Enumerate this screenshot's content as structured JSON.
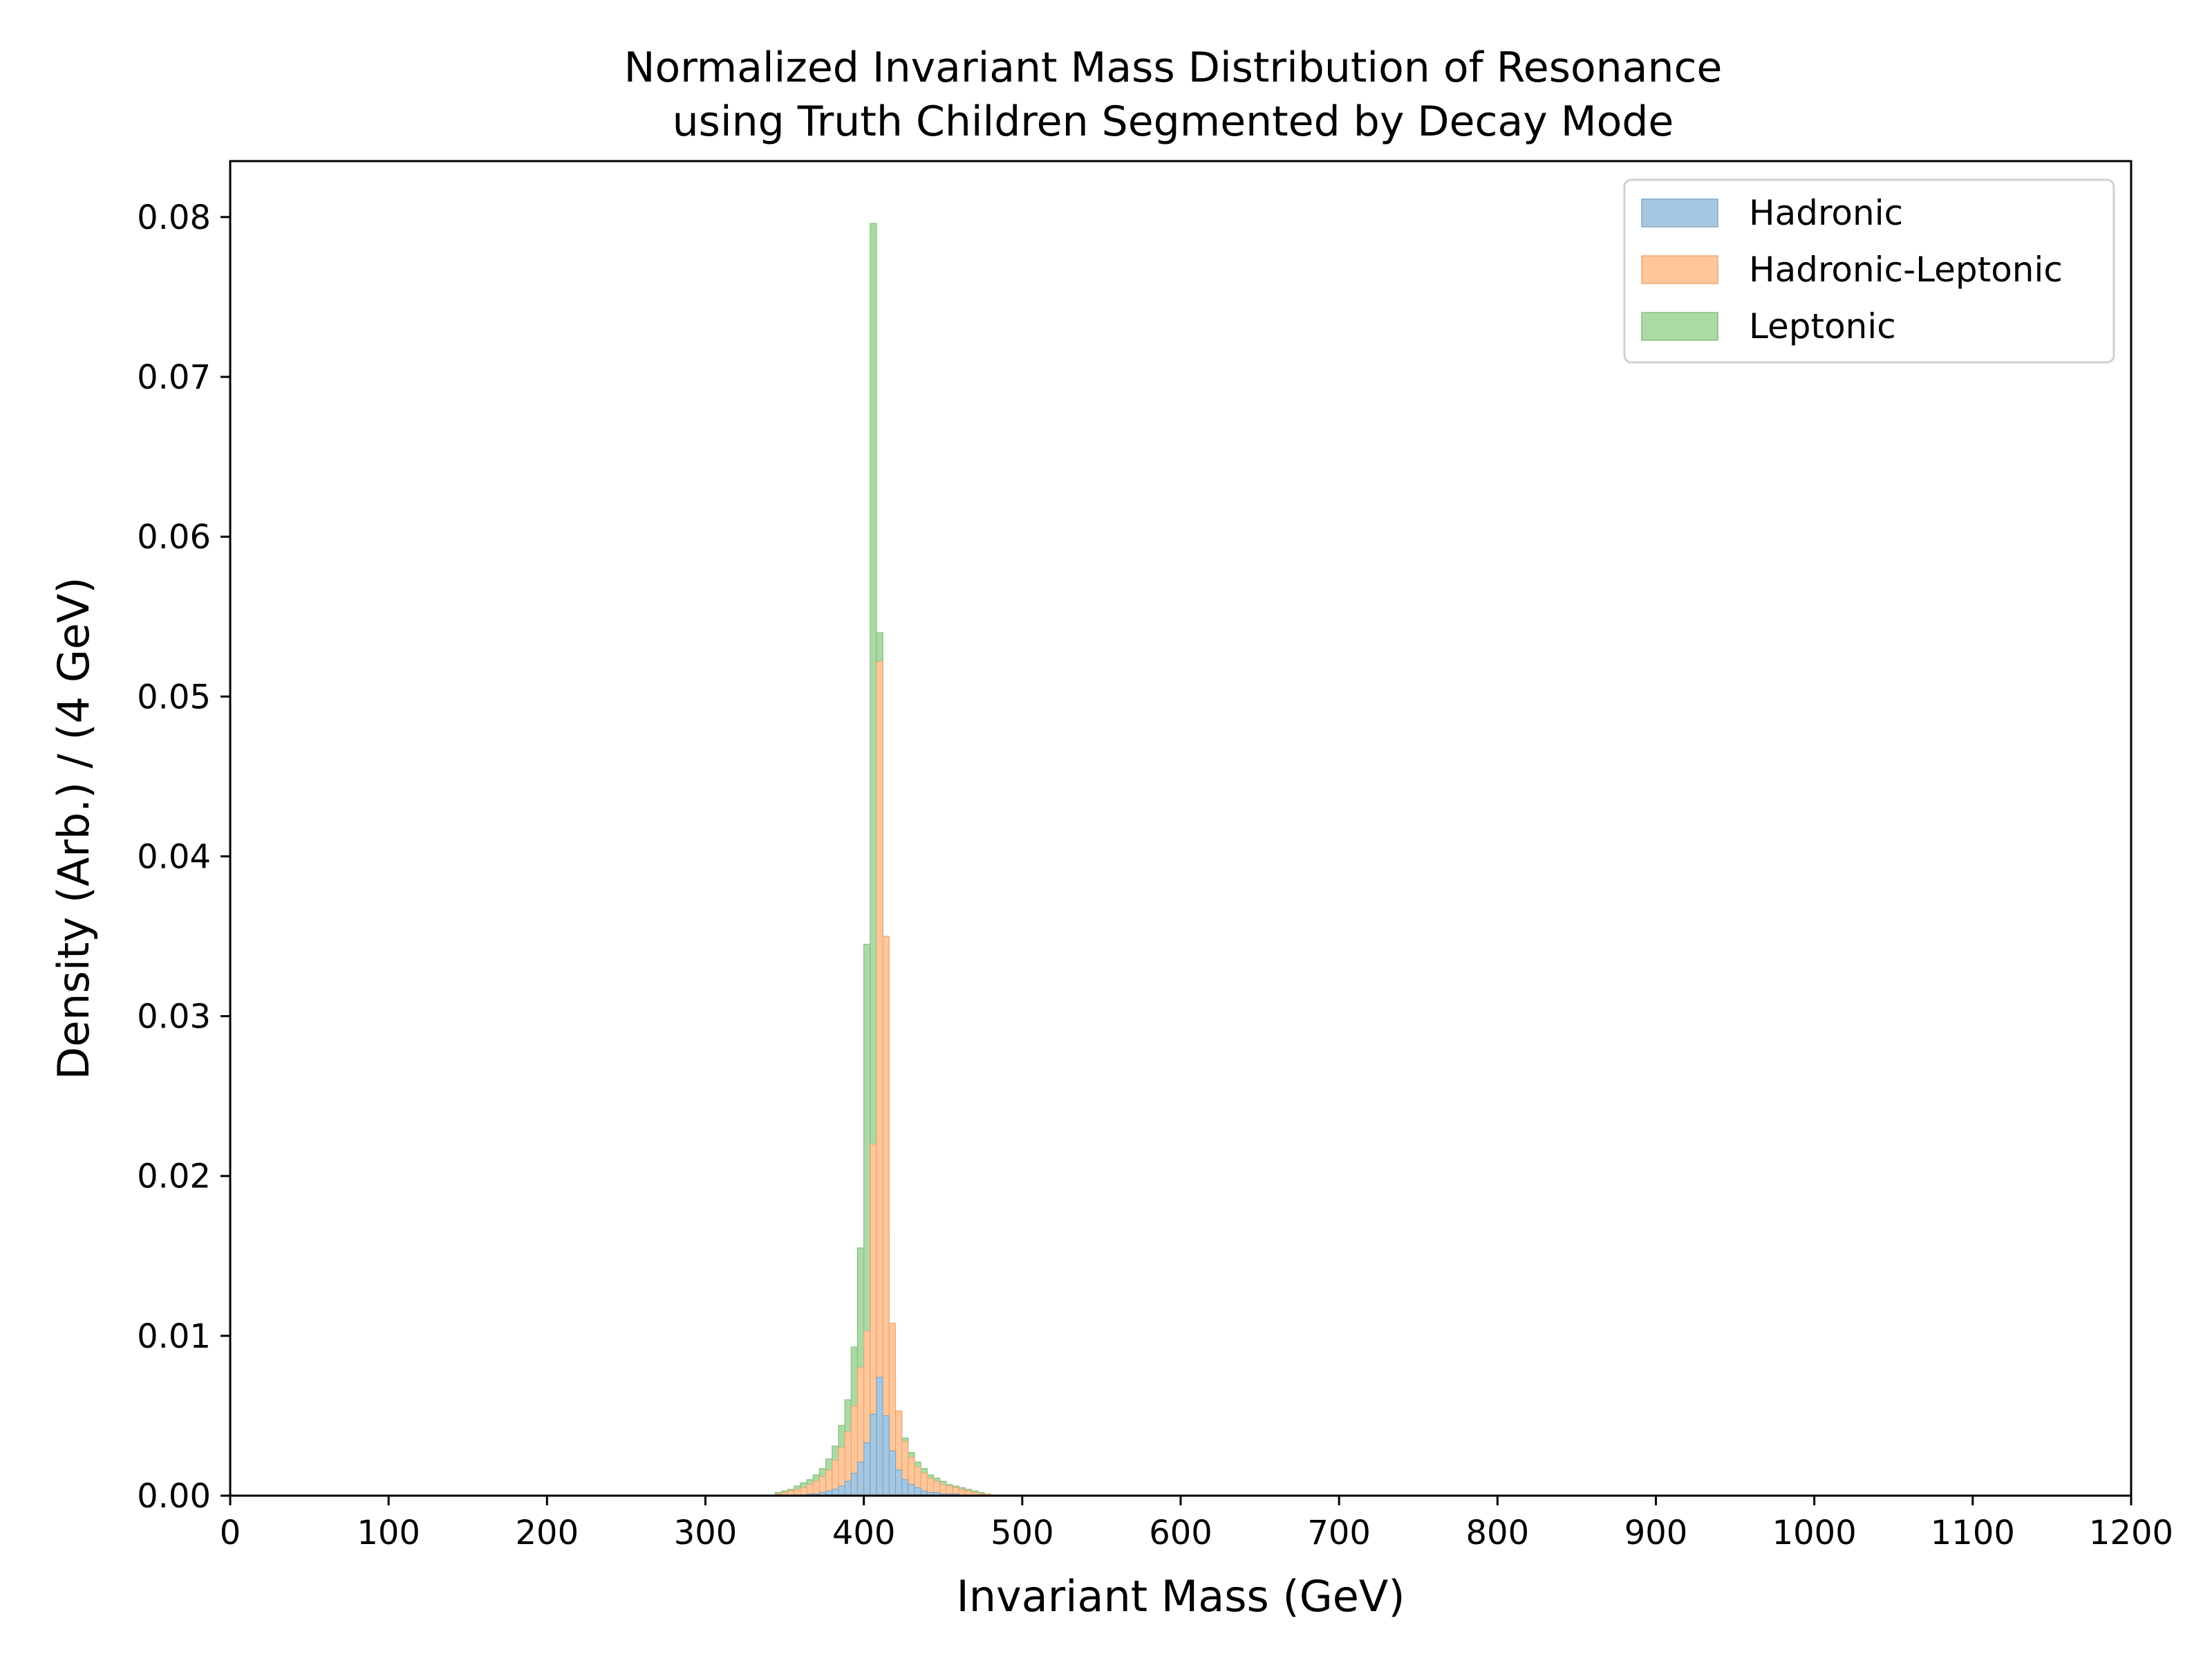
{
  "chart_data": {
    "type": "bar",
    "stacked": true,
    "histogram": true,
    "title_lines": [
      "Normalized Invariant Mass Distribution of Resonance",
      "using Truth Children Segmented by Decay Mode"
    ],
    "xlabel": "Invariant Mass (GeV)",
    "ylabel": "Density (Arb.) / (4 GeV)",
    "xlim": [
      0,
      1200
    ],
    "ylim": [
      0,
      0.0835
    ],
    "xticks": [
      0,
      100,
      200,
      300,
      400,
      500,
      600,
      700,
      800,
      900,
      1000,
      1100,
      1200
    ],
    "xtick_labels": [
      "0",
      "100",
      "200",
      "300",
      "400",
      "500",
      "600",
      "700",
      "800",
      "900",
      "1000",
      "1100",
      "1200"
    ],
    "yticks": [
      0,
      0.01,
      0.02,
      0.03,
      0.04,
      0.05,
      0.06,
      0.07,
      0.08
    ],
    "ytick_labels": [
      "0.00",
      "0.01",
      "0.02",
      "0.03",
      "0.04",
      "0.05",
      "0.06",
      "0.07",
      "0.08"
    ],
    "grid": false,
    "legend_position": "top-right",
    "bin_width": 4,
    "bin_edges_start": 344,
    "series": [
      {
        "name": "Hadronic",
        "color": "#a6c7e1",
        "edge_color": "#7fa7c8",
        "cumulative_top": [
          0.0,
          0.0,
          0.0,
          0.0,
          0.0,
          0.0001,
          0.0001,
          0.0002,
          0.0003,
          0.0004,
          0.0006,
          0.0009,
          0.0014,
          0.0021,
          0.0033,
          0.0051,
          0.0074,
          0.005,
          0.0028,
          0.0016,
          0.001,
          0.0007,
          0.0005,
          0.0003,
          0.0002,
          0.0002,
          0.0001,
          0.0001,
          0.0001,
          0.0,
          0.0,
          0.0,
          0.0,
          0.0
        ]
      },
      {
        "name": "Hadronic-Leptonic",
        "color": "#ffc799",
        "edge_color": "#e8a877",
        "cumulative_top": [
          0.0001,
          0.0002,
          0.0003,
          0.0004,
          0.0005,
          0.0007,
          0.0009,
          0.0012,
          0.0016,
          0.0022,
          0.003,
          0.004,
          0.0056,
          0.008,
          0.0103,
          0.022,
          0.0522,
          0.035,
          0.0108,
          0.0053,
          0.0034,
          0.0024,
          0.0018,
          0.0014,
          0.0011,
          0.0009,
          0.0007,
          0.0006,
          0.0005,
          0.0004,
          0.0003,
          0.0002,
          0.0001,
          0.0001
        ]
      },
      {
        "name": "Leptonic",
        "color": "#abdaa5",
        "edge_color": "#86c07e",
        "cumulative_top": [
          0.0002,
          0.0003,
          0.0004,
          0.0006,
          0.0008,
          0.001,
          0.0013,
          0.0017,
          0.0023,
          0.0031,
          0.0044,
          0.006,
          0.0093,
          0.0155,
          0.0345,
          0.0796,
          0.054,
          0.0163,
          0.0076,
          0.0049,
          0.0036,
          0.0027,
          0.0021,
          0.0017,
          0.0013,
          0.0011,
          0.0009,
          0.0007,
          0.0006,
          0.0005,
          0.0004,
          0.0003,
          0.0002,
          0.0001
        ]
      }
    ]
  }
}
